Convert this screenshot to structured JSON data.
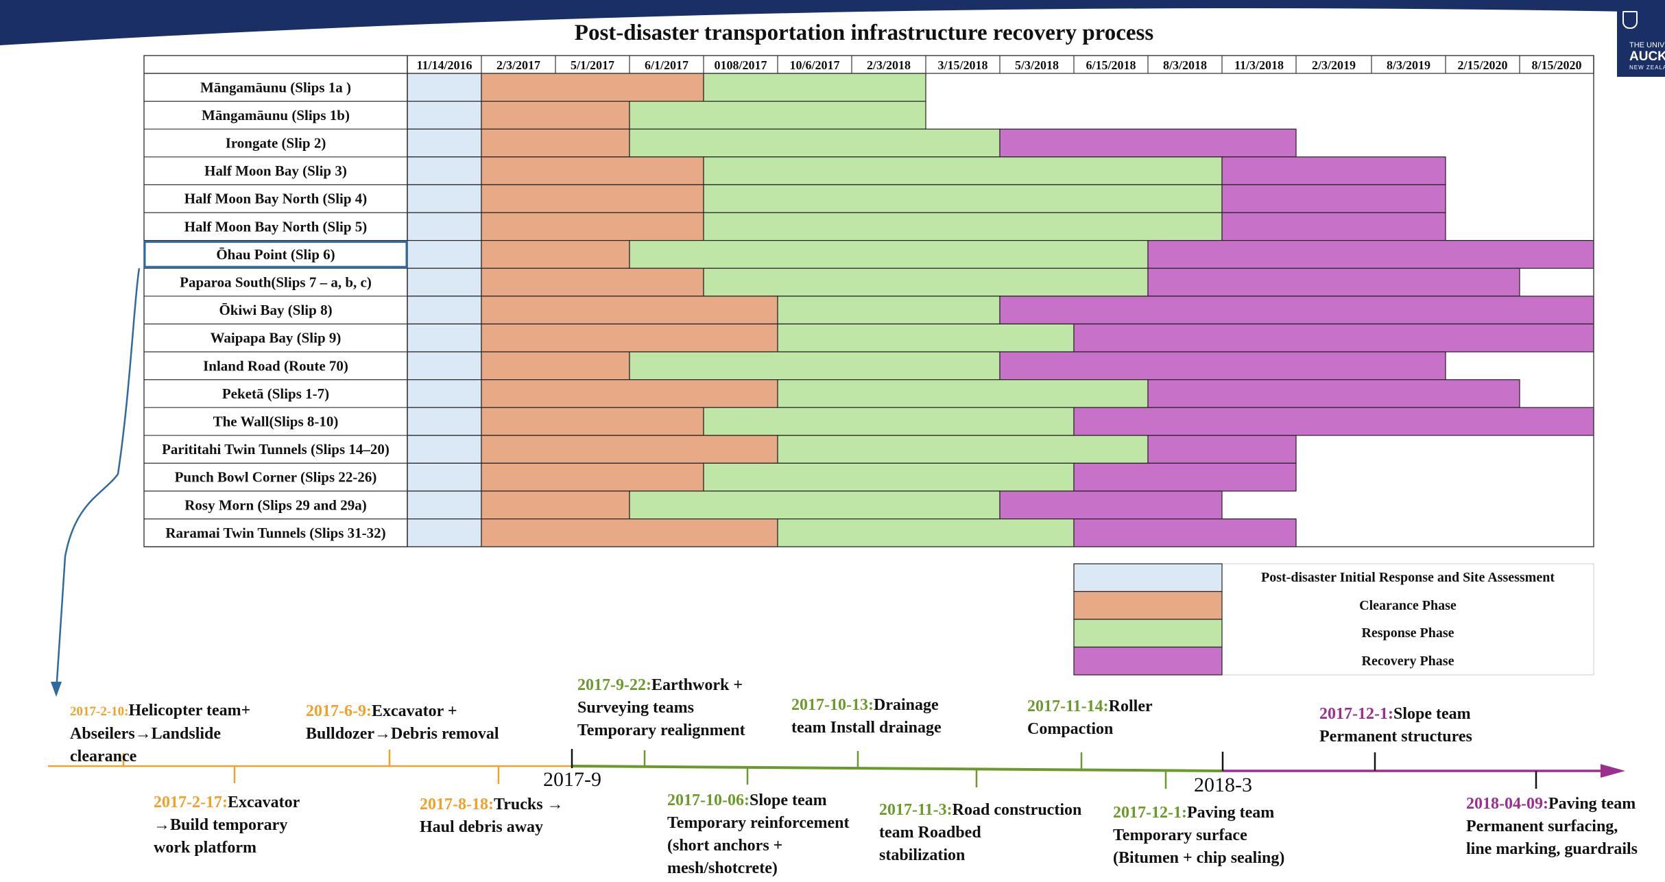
{
  "chart_data": {
    "type": "gantt",
    "title": "Post-disaster transportation infrastructure recovery process",
    "date_columns": [
      "11/14/2016",
      "2/3/2017",
      "5/1/2017",
      "6/1/2017",
      "0108/2017",
      "10/6/2017",
      "2/3/2018",
      "3/15/2018",
      "5/3/2018",
      "6/15/2018",
      "8/3/2018",
      "11/3/2018",
      "2/3/2019",
      "8/3/2019",
      "2/15/2020",
      "8/15/2020"
    ],
    "phases": [
      {
        "name": "Post-disaster Initial Response and Site Assessment",
        "color": "#dbe8f6"
      },
      {
        "name": "Clearance Phase",
        "color": "#e8a987"
      },
      {
        "name": "Response Phase",
        "color": "#bfe6a6"
      },
      {
        "name": "Recovery Phase",
        "color": "#c871c9"
      }
    ],
    "tasks": [
      {
        "name": "Māngamāunu (Slips 1a )",
        "segments": [
          [
            0,
            1,
            0
          ],
          [
            1,
            4,
            1
          ],
          [
            4,
            7,
            2
          ]
        ]
      },
      {
        "name": "Māngamāunu (Slips 1b)",
        "segments": [
          [
            0,
            1,
            0
          ],
          [
            1,
            3,
            1
          ],
          [
            3,
            7,
            2
          ]
        ]
      },
      {
        "name": "Irongate (Slip 2)",
        "segments": [
          [
            0,
            1,
            0
          ],
          [
            1,
            3,
            1
          ],
          [
            3,
            8,
            2
          ],
          [
            8,
            12,
            3
          ]
        ]
      },
      {
        "name": "Half Moon Bay (Slip 3)",
        "segments": [
          [
            0,
            1,
            0
          ],
          [
            1,
            4,
            1
          ],
          [
            4,
            11,
            2
          ],
          [
            11,
            14,
            3
          ]
        ]
      },
      {
        "name": "Half Moon Bay North (Slip 4)",
        "segments": [
          [
            0,
            1,
            0
          ],
          [
            1,
            4,
            1
          ],
          [
            4,
            11,
            2
          ],
          [
            11,
            14,
            3
          ]
        ]
      },
      {
        "name": "Half Moon Bay North (Slip 5)",
        "segments": [
          [
            0,
            1,
            0
          ],
          [
            1,
            4,
            1
          ],
          [
            4,
            11,
            2
          ],
          [
            11,
            14,
            3
          ]
        ]
      },
      {
        "name": "Ōhau Point (Slip 6)",
        "segments": [
          [
            0,
            1,
            0
          ],
          [
            1,
            3,
            1
          ],
          [
            3,
            10,
            2
          ],
          [
            10,
            16,
            3
          ]
        ]
      },
      {
        "name": "Paparoa South(Slips 7 – a, b, c)",
        "segments": [
          [
            0,
            1,
            0
          ],
          [
            1,
            4,
            1
          ],
          [
            4,
            10,
            2
          ],
          [
            10,
            15,
            3
          ]
        ]
      },
      {
        "name": "Ōkiwi Bay (Slip 8)",
        "segments": [
          [
            0,
            1,
            0
          ],
          [
            1,
            5,
            1
          ],
          [
            5,
            8,
            2
          ],
          [
            8,
            16,
            3
          ]
        ]
      },
      {
        "name": "Waipapa Bay (Slip 9)",
        "segments": [
          [
            0,
            1,
            0
          ],
          [
            1,
            5,
            1
          ],
          [
            5,
            9,
            2
          ],
          [
            9,
            16,
            3
          ]
        ]
      },
      {
        "name": "Inland Road (Route 70)",
        "segments": [
          [
            0,
            1,
            0
          ],
          [
            1,
            3,
            1
          ],
          [
            3,
            8,
            2
          ],
          [
            8,
            14,
            3
          ]
        ]
      },
      {
        "name": "Peketā (Slips 1-7)",
        "segments": [
          [
            0,
            1,
            0
          ],
          [
            1,
            5,
            1
          ],
          [
            5,
            10,
            2
          ],
          [
            10,
            15,
            3
          ]
        ]
      },
      {
        "name": "The Wall(Slips 8-10)",
        "segments": [
          [
            0,
            1,
            0
          ],
          [
            1,
            4,
            1
          ],
          [
            4,
            9,
            2
          ],
          [
            9,
            16,
            3
          ]
        ]
      },
      {
        "name": "Parititahi Twin Tunnels (Slips 14–20)",
        "segments": [
          [
            0,
            1,
            0
          ],
          [
            1,
            5,
            1
          ],
          [
            5,
            10,
            2
          ],
          [
            10,
            12,
            3
          ]
        ]
      },
      {
        "name": "Punch Bowl Corner (Slips 22-26)",
        "segments": [
          [
            0,
            1,
            0
          ],
          [
            1,
            4,
            1
          ],
          [
            4,
            9,
            2
          ],
          [
            9,
            12,
            3
          ]
        ]
      },
      {
        "name": "Rosy Morn (Slips 29 and 29a)",
        "segments": [
          [
            0,
            1,
            0
          ],
          [
            1,
            3,
            1
          ],
          [
            3,
            8,
            2
          ],
          [
            8,
            11,
            3
          ]
        ]
      },
      {
        "name": "Raramai Twin Tunnels (Slips 31-32)",
        "segments": [
          [
            0,
            1,
            0
          ],
          [
            1,
            5,
            1
          ],
          [
            5,
            9,
            2
          ],
          [
            9,
            12,
            3
          ]
        ]
      }
    ],
    "highlighted_task": "Ōhau Point (Slip 6)"
  },
  "timeline": {
    "axis_labels": [
      "2017-9",
      "2018-3"
    ],
    "colors": {
      "clearance": "#f0a12a",
      "response": "#6b9a2c",
      "recovery": "#9a2f8f",
      "dark": "#111111"
    },
    "events": [
      {
        "id": "e1",
        "date": "2017-2-10:",
        "lines": [
          "Helicopter team+",
          "Abseilers→Landslide",
          "clearance"
        ],
        "phase": "clearance"
      },
      {
        "id": "e2",
        "date": "2017-2-17:",
        "lines": [
          "Excavator",
          "→Build temporary",
          "work platform"
        ],
        "phase": "clearance"
      },
      {
        "id": "e3",
        "date": "2017-6-9:",
        "lines": [
          "Excavator +",
          "Bulldozer→Debris removal"
        ],
        "phase": "clearance"
      },
      {
        "id": "e4",
        "date": "2017-8-18:",
        "lines": [
          "Trucks →",
          "Haul debris away"
        ],
        "phase": "clearance"
      },
      {
        "id": "e5",
        "date": "2017-9-22:",
        "lines": [
          "Earthwork +",
          "Surveying teams",
          "Temporary realignment"
        ],
        "phase": "response"
      },
      {
        "id": "e6",
        "date": "2017-10-06:",
        "lines": [
          "Slope team",
          "Temporary reinforcement",
          "(short anchors +",
          "mesh/shotcrete)"
        ],
        "phase": "response"
      },
      {
        "id": "e7",
        "date": "2017-10-13:",
        "lines": [
          "Drainage",
          "team Install drainage"
        ],
        "phase": "response"
      },
      {
        "id": "e8",
        "date": "2017-11-3:",
        "lines": [
          "Road construction",
          "team Roadbed",
          "stabilization"
        ],
        "phase": "response"
      },
      {
        "id": "e9",
        "date": "2017-11-14:",
        "lines": [
          "Roller",
          "Compaction"
        ],
        "phase": "response"
      },
      {
        "id": "e10",
        "date": "2017-12-1:",
        "lines": [
          "Paving team",
          "Temporary surface",
          "(Bitumen + chip sealing)"
        ],
        "phase": "response"
      },
      {
        "id": "e11",
        "date": "2017-12-1:",
        "lines": [
          "Slope team",
          "Permanent structures"
        ],
        "phase": "recovery"
      },
      {
        "id": "e12",
        "date": "2018-04-09:",
        "lines": [
          "Paving team",
          "Permanent surfacing,",
          "line marking, guardrails"
        ],
        "phase": "recovery"
      }
    ]
  },
  "logo": {
    "line1": "THE UNIVERSITY OF",
    "line2": "AUCKLAND",
    "line3": "NEW ZEALAND"
  }
}
